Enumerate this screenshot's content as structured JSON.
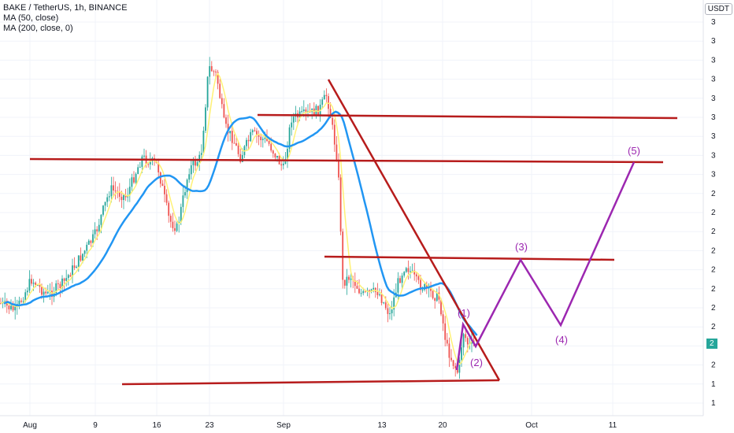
{
  "chart_data": {
    "type": "line",
    "title": "BAKE / TetherUS, 1h, BINANCE",
    "indicators": [
      "MA (50, close)",
      "MA (200, close, 0)"
    ],
    "unit": "USDT",
    "current_price_label": "2",
    "x_ticks": [
      "Aug",
      "9",
      "16",
      "23",
      "Sep",
      "13",
      "20",
      "Oct",
      "11"
    ],
    "y_ticks": [
      "3",
      "3",
      "3",
      "3",
      "3",
      "3",
      "3",
      "3",
      "3",
      "2",
      "2",
      "2",
      "2",
      "2",
      "2",
      "2",
      "2",
      "2",
      "2",
      "1",
      "1"
    ],
    "colors": {
      "candle_up": "#26a69a",
      "candle_down": "#ef5350",
      "ma50": "#fff176",
      "ma200": "#2196f3",
      "drawing_lines": "#b71c1c",
      "wave": "#9c27b0",
      "grid": "#f0f3fa"
    },
    "grid": true,
    "wave_labels": [
      "(1)",
      "(2)",
      "(3)",
      "(4)",
      "(5)"
    ]
  }
}
